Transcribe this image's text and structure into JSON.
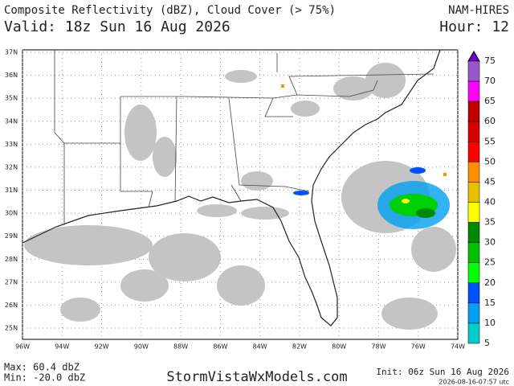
{
  "header": {
    "title": "Composite Reflectivity (dBZ), Cloud Cover (> 75%)",
    "valid": "Valid: 18z Sun 16 Aug 2026",
    "model": "NAM-HIRES",
    "hour": "Hour: 12"
  },
  "map": {
    "lat_labels": [
      "37N",
      "36N",
      "35N",
      "34N",
      "33N",
      "32N",
      "31N",
      "30N",
      "29N",
      "28N",
      "27N",
      "26N",
      "25N"
    ],
    "lon_labels": [
      "96W",
      "94W",
      "92W",
      "90W",
      "88W",
      "86W",
      "84W",
      "82W",
      "80W",
      "78W",
      "76W",
      "74W"
    ]
  },
  "colorbar": {
    "labels": [
      "75",
      "70",
      "65",
      "60",
      "55",
      "50",
      "45",
      "40",
      "35",
      "30",
      "25",
      "20",
      "15",
      "10",
      "5"
    ]
  },
  "footer": {
    "max": "Max: 60.4 dbZ",
    "min": "Min: -20.0 dbZ",
    "site": "StormVistaWxModels.com",
    "init": "Init: 06z Sun 16 Aug 2026",
    "stamp": "2026-08-16-07:57 utc"
  }
}
